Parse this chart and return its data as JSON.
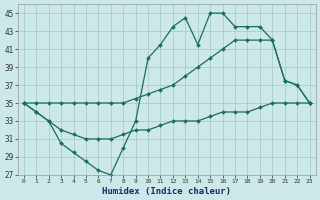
{
  "xlabel": "Humidex (Indice chaleur)",
  "bg_color": "#cce8e8",
  "grid_color": "#aacccc",
  "line_color": "#1a6e5e",
  "xlim": [
    -0.5,
    23.5
  ],
  "ylim": [
    27,
    46
  ],
  "xticks": [
    0,
    1,
    2,
    3,
    4,
    5,
    6,
    7,
    8,
    9,
    10,
    11,
    12,
    13,
    14,
    15,
    16,
    17,
    18,
    19,
    20,
    21,
    22,
    23
  ],
  "yticks": [
    27,
    29,
    31,
    33,
    35,
    37,
    39,
    41,
    43,
    45
  ],
  "line1_x": [
    0,
    1,
    2,
    3,
    4,
    5,
    6,
    7,
    8,
    9,
    10,
    11,
    12,
    13,
    14,
    15,
    16,
    17,
    18,
    19,
    20,
    21,
    22,
    23
  ],
  "line1_y": [
    35,
    34,
    33,
    32,
    31.5,
    31,
    31,
    31,
    31.5,
    32,
    32,
    32.5,
    33,
    33,
    33,
    33.5,
    34,
    34,
    34,
    34.5,
    35,
    35,
    35,
    35
  ],
  "line2_x": [
    0,
    1,
    2,
    3,
    4,
    5,
    6,
    7,
    8,
    9,
    10,
    11,
    12,
    13,
    14,
    15,
    16,
    17,
    18,
    19,
    20,
    21,
    22,
    23
  ],
  "line2_y": [
    35,
    35,
    35,
    35,
    35,
    35,
    35,
    35,
    35,
    35.5,
    36,
    36.5,
    37,
    38,
    39,
    40,
    41,
    42,
    42,
    42,
    42,
    37.5,
    37,
    35
  ],
  "line3_x": [
    0,
    1,
    2,
    3,
    4,
    5,
    6,
    7,
    8,
    9,
    10,
    11,
    12,
    13,
    14,
    15,
    16,
    17,
    18,
    19,
    20,
    21,
    22,
    23
  ],
  "line3_y": [
    35,
    34,
    33,
    30.5,
    29.5,
    28.5,
    27.5,
    27,
    30,
    33,
    40,
    41.5,
    43.5,
    44.5,
    41.5,
    45,
    45,
    43.5,
    43.5,
    43.5,
    42,
    37.5,
    37,
    35
  ]
}
